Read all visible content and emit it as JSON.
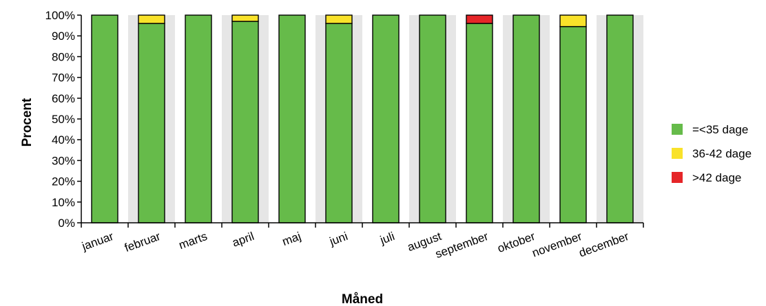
{
  "chart_data": {
    "type": "bar",
    "stacked": true,
    "categories": [
      "januar",
      "februar",
      "marts",
      "april",
      "maj",
      "juni",
      "juli",
      "august",
      "september",
      "oktober",
      "november",
      "december"
    ],
    "series": [
      {
        "name": "=<35 dage",
        "color": "#66bb4a",
        "values": [
          100,
          96,
          100,
          97,
          100,
          96,
          100,
          100,
          96,
          100,
          94.5,
          100
        ]
      },
      {
        "name": "36-42 dage",
        "color": "#f9e22a",
        "values": [
          0,
          4,
          0,
          3,
          0,
          4,
          0,
          0,
          0,
          0,
          5.5,
          0
        ]
      },
      {
        "name": ">42 dage",
        "color": "#e52528",
        "values": [
          0,
          0,
          0,
          0,
          0,
          0,
          0,
          0,
          4,
          0,
          0,
          0
        ]
      }
    ],
    "xlabel": "Måned",
    "ylabel": "Procent",
    "ylim": [
      0,
      100
    ],
    "yticks": [
      "0%",
      "10%",
      "20%",
      "30%",
      "40%",
      "50%",
      "60%",
      "70%",
      "80%",
      "90%",
      "100%"
    ],
    "legend_position": "right",
    "alternating_band_color": "#e6e6e6"
  }
}
